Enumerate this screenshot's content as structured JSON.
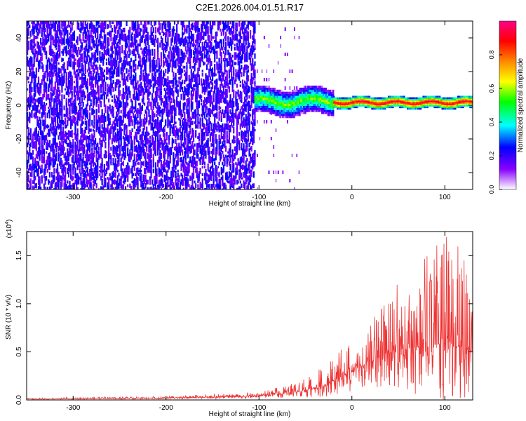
{
  "chart_data": [
    {
      "type": "heatmap",
      "title": "C2E1.2026.004.01.51.R17",
      "xlabel": "Height of straight line (km)",
      "ylabel": "Frequency (Hz)",
      "xlim": [
        -350,
        130
      ],
      "ylim": [
        -50,
        50
      ],
      "xticks": [
        -300,
        -200,
        -100,
        0,
        100
      ],
      "yticks": [
        -40,
        -20,
        0,
        20,
        40
      ],
      "colorbar": {
        "label": "Normalized spectral amplitude",
        "range": [
          0.0,
          1.0
        ],
        "ticks": [
          "0.0",
          "0.2",
          "0.4",
          "0.6",
          "0.8"
        ],
        "colors": [
          "#ffffff",
          "#8800ff",
          "#0000ff",
          "#00ffff",
          "#00ff00",
          "#ffff00",
          "#ff8800",
          "#ff0000",
          "#ff0088"
        ]
      },
      "description_regions": [
        {
          "x_range": [
            -350,
            -105
          ],
          "freq_range": [
            -50,
            50
          ],
          "amplitude": 0.2
        },
        {
          "x_range": [
            -105,
            -20
          ],
          "freq_range": [
            -10,
            10
          ],
          "amplitude": 0.5
        },
        {
          "x_range": [
            -20,
            130
          ],
          "freq_range": [
            -3,
            5
          ],
          "amplitude": 0.9
        }
      ]
    },
    {
      "type": "line",
      "xlabel": "Height of straight line (km)",
      "ylabel": "SNR (10 * v/v)",
      "multiplier_prefix": "(x10",
      "multiplier_exp": "4",
      "multiplier_suffix": ")",
      "xlim": [
        -350,
        130
      ],
      "ylim": [
        0,
        1.75
      ],
      "xticks": [
        -300,
        -200,
        -100,
        0,
        100
      ],
      "yticks": [
        "0.0",
        "0.5",
        "1.0",
        "1.5"
      ],
      "line_color": "#ee3333",
      "envelope": {
        "x": [
          -350,
          -200,
          -100,
          -60,
          -30,
          -10,
          0,
          20,
          40,
          60,
          80,
          100,
          120,
          130
        ],
        "mean": [
          0.01,
          0.02,
          0.04,
          0.08,
          0.15,
          0.25,
          0.3,
          0.4,
          0.5,
          0.55,
          0.55,
          0.6,
          0.55,
          0.5
        ],
        "peak": [
          0.02,
          0.04,
          0.08,
          0.18,
          0.35,
          0.55,
          0.65,
          0.8,
          1.2,
          1.3,
          1.5,
          1.72,
          1.65,
          1.1
        ]
      }
    }
  ]
}
